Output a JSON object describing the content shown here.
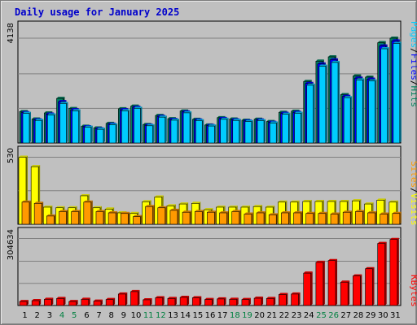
{
  "title": "Daily usage for January 2025",
  "colors": {
    "pages": "#00ccff",
    "files": "#0000ff",
    "hits": "#00805c",
    "sites": "#ff9900",
    "visits": "#ffff00",
    "kbytes": "#ff0000",
    "weekend_day": "#008040",
    "weekday": "#000000"
  },
  "chart_data": [
    {
      "type": "bar",
      "ymax_label": "4138",
      "ylim": [
        0,
        4138
      ],
      "categories": [
        "1",
        "2",
        "3",
        "4",
        "5",
        "6",
        "7",
        "8",
        "9",
        "10",
        "11",
        "12",
        "13",
        "14",
        "15",
        "16",
        "17",
        "18",
        "19",
        "20",
        "21",
        "22",
        "23",
        "24",
        "25",
        "26",
        "27",
        "28",
        "29",
        "30",
        "31"
      ],
      "weekend_categories": [
        "4",
        "5",
        "11",
        "12",
        "18",
        "19",
        "25",
        "26"
      ],
      "series": [
        {
          "name": "Hits",
          "values": [
            1240,
            945,
            1185,
            1760,
            1360,
            660,
            595,
            775,
            1350,
            1455,
            730,
            1085,
            960,
            1265,
            935,
            710,
            1000,
            945,
            900,
            940,
            845,
            1210,
            1255,
            2430,
            3230,
            3400,
            1910,
            2645,
            2600,
            3960,
            4138
          ]
        },
        {
          "name": "Files",
          "values": [
            1200,
            915,
            1140,
            1630,
            1310,
            640,
            560,
            740,
            1310,
            1410,
            700,
            1050,
            925,
            1225,
            905,
            690,
            965,
            915,
            870,
            905,
            815,
            1170,
            1210,
            2350,
            3120,
            3280,
            1840,
            2560,
            2520,
            3830,
            4030
          ]
        },
        {
          "name": "Pages",
          "values": [
            1170,
            890,
            1105,
            1560,
            1270,
            620,
            540,
            715,
            1270,
            1370,
            680,
            1020,
            900,
            1190,
            880,
            670,
            935,
            890,
            845,
            880,
            790,
            1135,
            1175,
            2280,
            3030,
            3180,
            1790,
            2490,
            2450,
            3720,
            3930
          ]
        }
      ],
      "vertical_label": [
        "Pages",
        "Files",
        "Hits"
      ]
    },
    {
      "type": "bar",
      "ymax_label": "530",
      "ylim": [
        0,
        530
      ],
      "categories": [
        "1",
        "2",
        "3",
        "4",
        "5",
        "6",
        "7",
        "8",
        "9",
        "10",
        "11",
        "12",
        "13",
        "14",
        "15",
        "16",
        "17",
        "18",
        "19",
        "20",
        "21",
        "22",
        "23",
        "24",
        "25",
        "26",
        "27",
        "28",
        "29",
        "30",
        "31"
      ],
      "series": [
        {
          "name": "Visits",
          "values": [
            530,
            455,
            135,
            130,
            130,
            225,
            130,
            120,
            90,
            85,
            178,
            215,
            145,
            160,
            165,
            115,
            135,
            135,
            135,
            140,
            135,
            175,
            175,
            180,
            180,
            180,
            180,
            185,
            160,
            190,
            175
          ]
        },
        {
          "name": "Sites",
          "values": [
            175,
            165,
            65,
            100,
            100,
            175,
            100,
            90,
            85,
            60,
            140,
            130,
            110,
            95,
            100,
            95,
            90,
            100,
            80,
            90,
            75,
            90,
            90,
            85,
            85,
            80,
            95,
            100,
            90,
            80,
            85
          ]
        }
      ],
      "vertical_label": [
        "Sites",
        "Visits"
      ]
    },
    {
      "type": "bar",
      "ymax_label": "304634",
      "ylim": [
        0,
        304634
      ],
      "categories": [
        "1",
        "2",
        "3",
        "4",
        "5",
        "6",
        "7",
        "8",
        "9",
        "10",
        "11",
        "12",
        "13",
        "14",
        "15",
        "16",
        "17",
        "18",
        "19",
        "20",
        "21",
        "22",
        "23",
        "24",
        "25",
        "26",
        "27",
        "28",
        "29",
        "30",
        "31"
      ],
      "series": [
        {
          "name": "KBytes",
          "values": [
            18000,
            22000,
            28000,
            32000,
            18000,
            28000,
            20000,
            27000,
            52000,
            63000,
            26000,
            35000,
            32000,
            37000,
            35000,
            27000,
            30000,
            28000,
            27000,
            33000,
            32000,
            50000,
            52000,
            147000,
            196000,
            204000,
            106000,
            134000,
            167000,
            282000,
            300000
          ]
        }
      ],
      "vertical_label": [
        "KBytes"
      ]
    }
  ]
}
